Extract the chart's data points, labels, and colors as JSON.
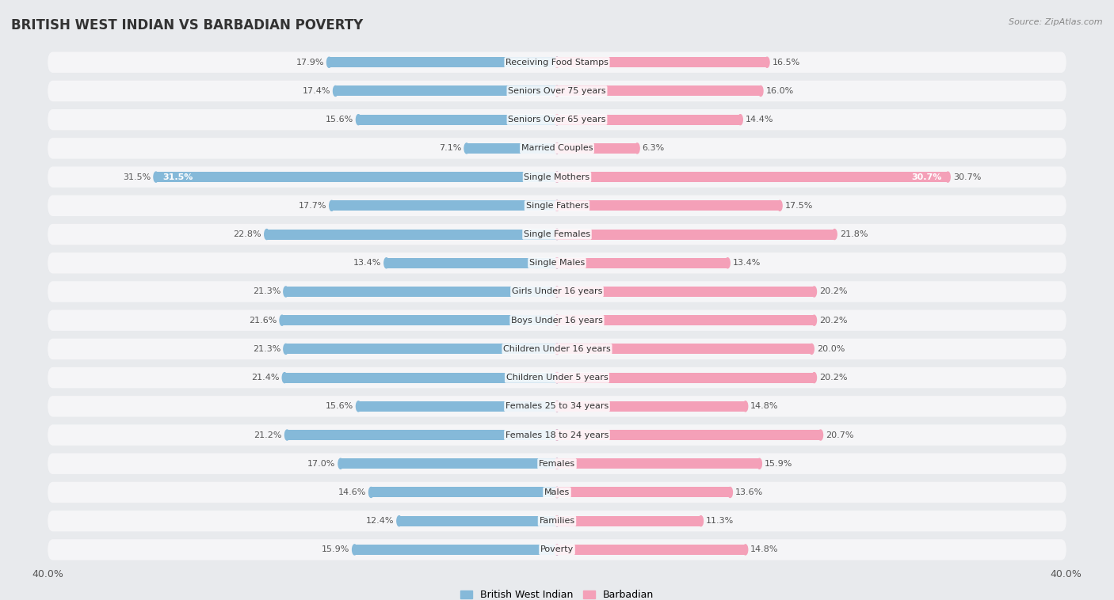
{
  "title": "BRITISH WEST INDIAN VS BARBADIAN POVERTY",
  "source": "Source: ZipAtlas.com",
  "categories": [
    "Poverty",
    "Families",
    "Males",
    "Females",
    "Females 18 to 24 years",
    "Females 25 to 34 years",
    "Children Under 5 years",
    "Children Under 16 years",
    "Boys Under 16 years",
    "Girls Under 16 years",
    "Single Males",
    "Single Females",
    "Single Fathers",
    "Single Mothers",
    "Married Couples",
    "Seniors Over 65 years",
    "Seniors Over 75 years",
    "Receiving Food Stamps"
  ],
  "left_values": [
    15.9,
    12.4,
    14.6,
    17.0,
    21.2,
    15.6,
    21.4,
    21.3,
    21.6,
    21.3,
    13.4,
    22.8,
    17.7,
    31.5,
    7.1,
    15.6,
    17.4,
    17.9
  ],
  "right_values": [
    14.8,
    11.3,
    13.6,
    15.9,
    20.7,
    14.8,
    20.2,
    20.0,
    20.2,
    20.2,
    13.4,
    21.8,
    17.5,
    30.7,
    6.3,
    14.4,
    16.0,
    16.5
  ],
  "left_color": "#85b9d9",
  "right_color": "#f4a0b8",
  "background_color": "#e8eaed",
  "row_bg": "#f5f5f7",
  "xlim": 40.0,
  "left_label": "British West Indian",
  "right_label": "Barbadian",
  "title_fontsize": 12,
  "source_fontsize": 8,
  "value_fontsize": 8,
  "category_fontsize": 8
}
